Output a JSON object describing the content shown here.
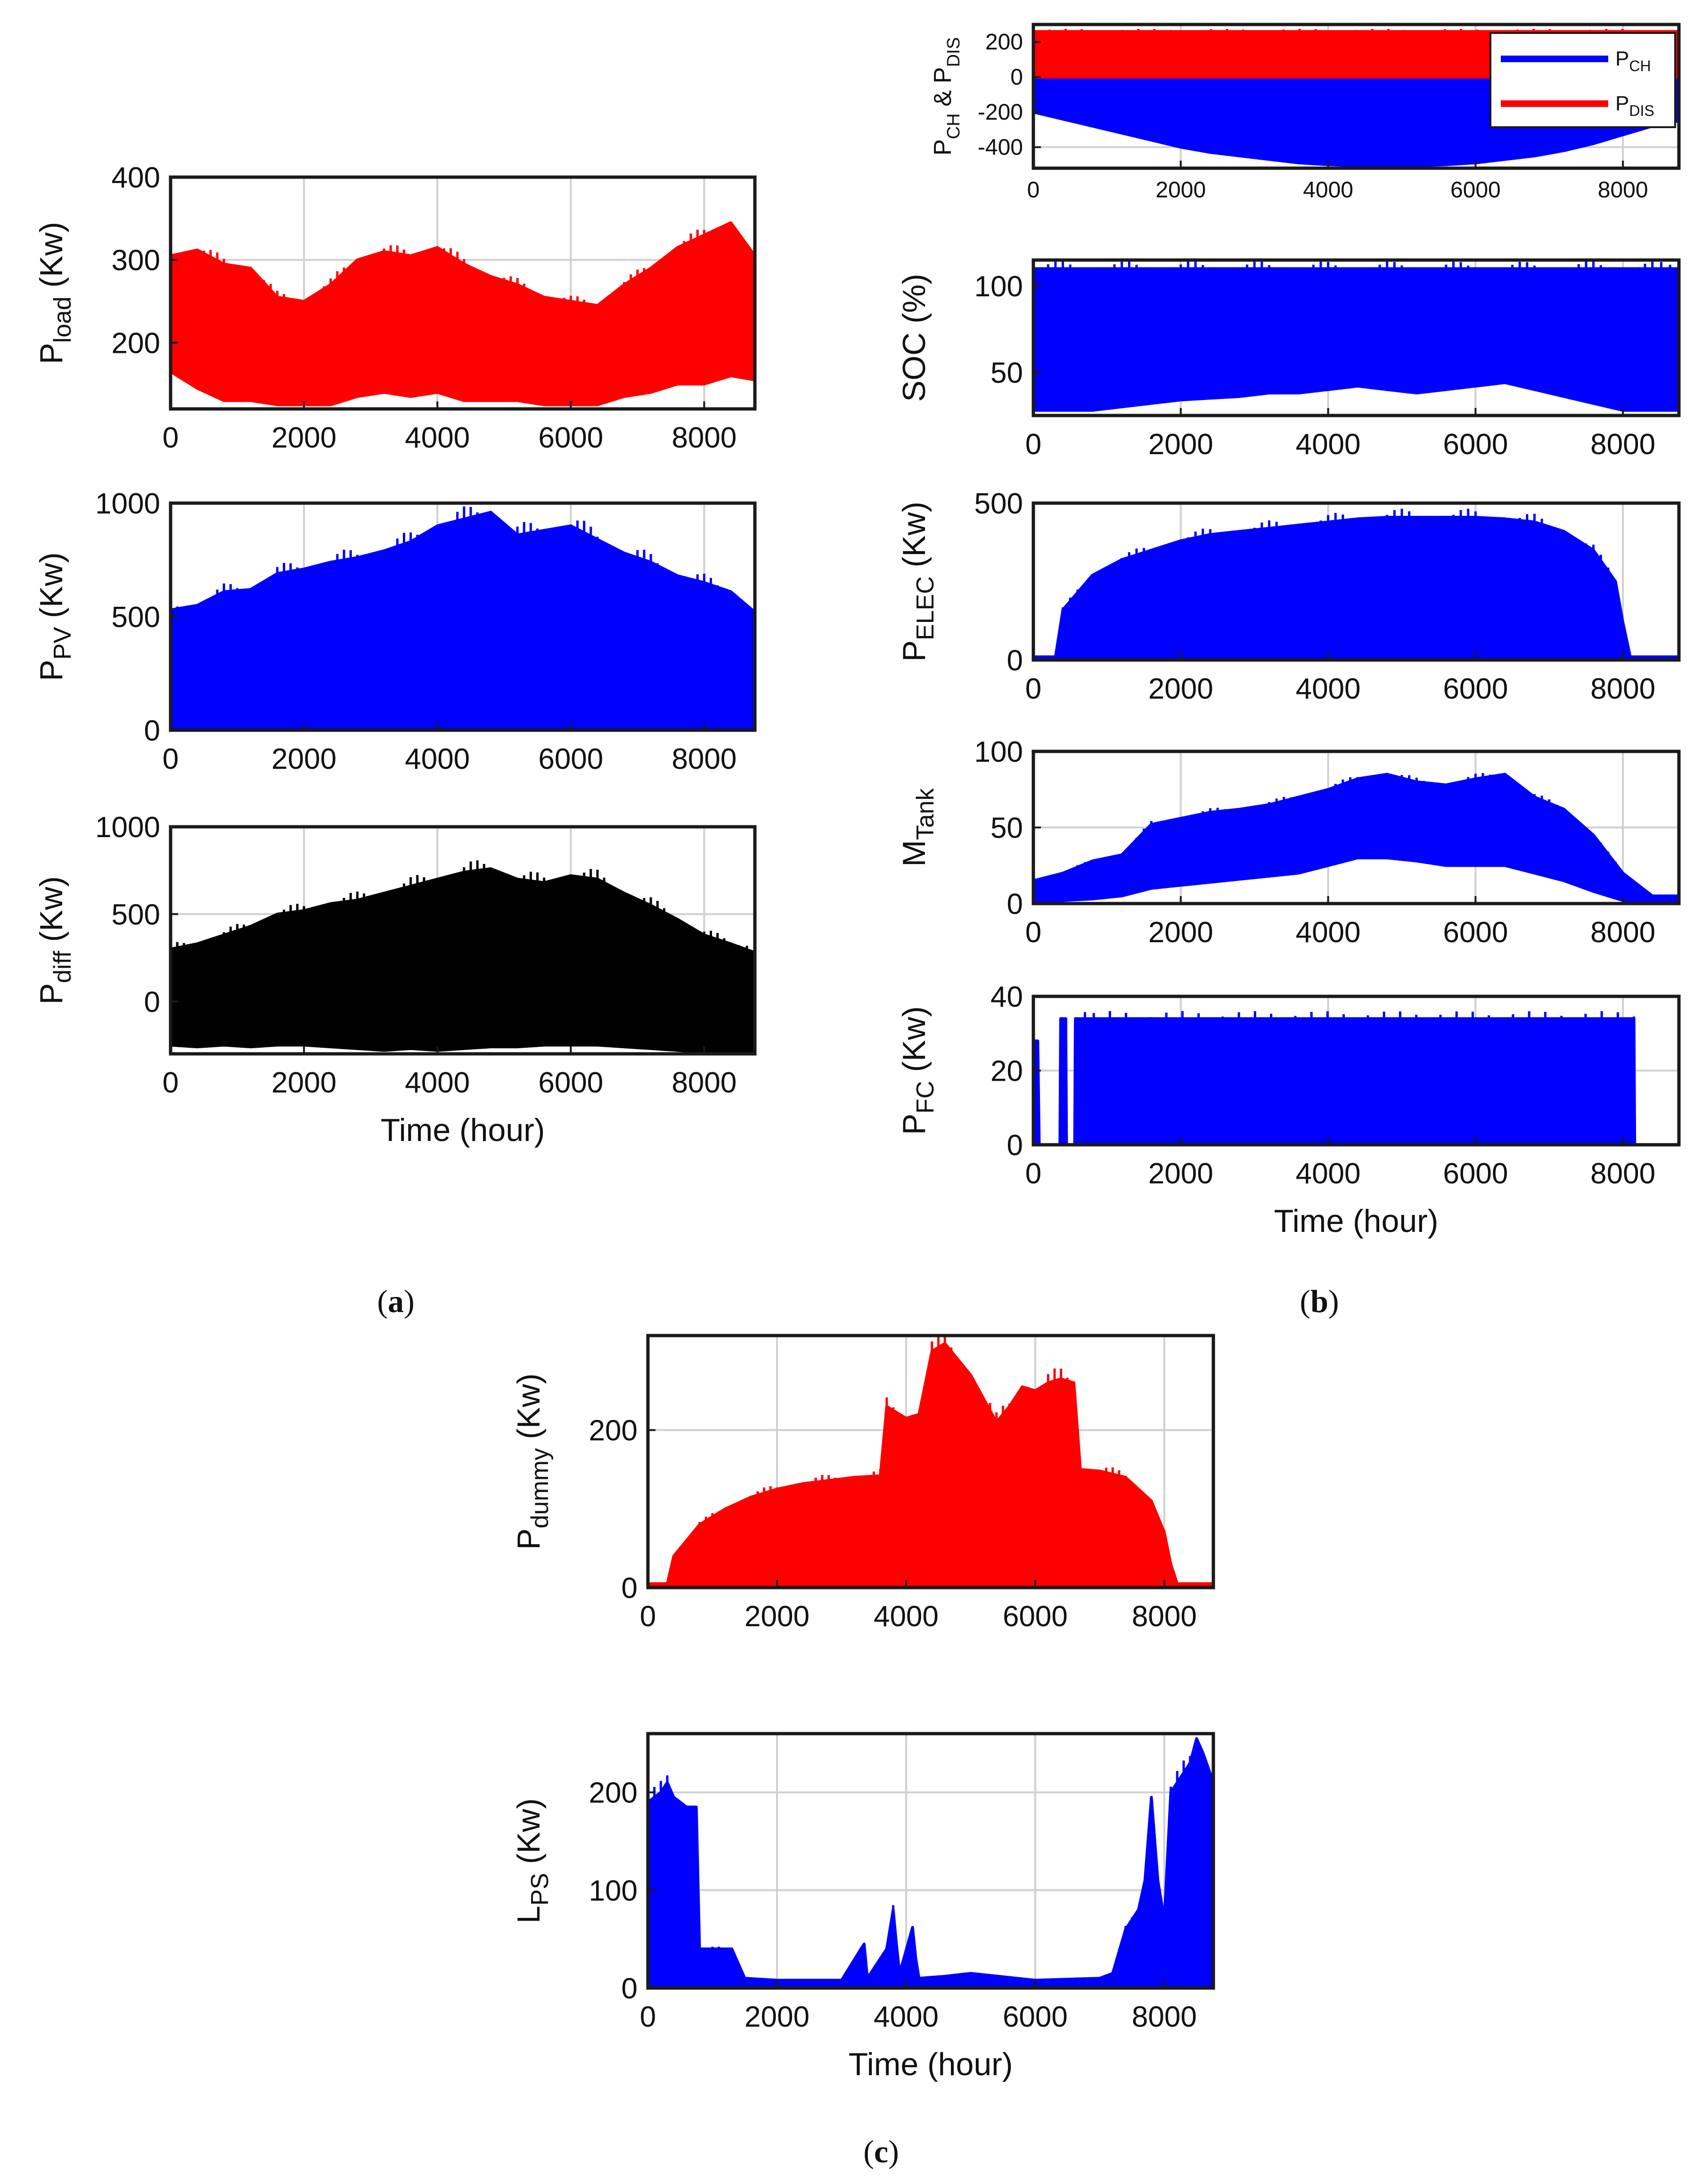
{
  "captions": {
    "a": "a",
    "b": "b",
    "c": "c"
  },
  "chart_data": [
    {
      "id": "a1",
      "type": "area",
      "color": "#ff0000",
      "ylabel": {
        "main": "P",
        "sub": "load",
        "unit": " (Kw)"
      },
      "xlim": [
        0,
        8760
      ],
      "ylim": [
        120,
        400
      ],
      "xticks": [
        0,
        2000,
        4000,
        6000,
        8000
      ],
      "yticks": [
        200,
        300,
        400
      ],
      "series": [
        {
          "name": "P_load",
          "x": [
            0,
            400,
            800,
            1200,
            1600,
            2000,
            2400,
            2800,
            3200,
            3600,
            4000,
            4400,
            4800,
            5200,
            5600,
            6000,
            6400,
            6800,
            7200,
            7600,
            8000,
            8400,
            8760
          ],
          "upper": [
            305,
            312,
            295,
            290,
            255,
            250,
            270,
            300,
            310,
            305,
            315,
            295,
            280,
            270,
            255,
            250,
            245,
            270,
            290,
            315,
            330,
            345,
            305
          ],
          "lower": [
            165,
            145,
            130,
            130,
            125,
            125,
            125,
            135,
            140,
            135,
            140,
            130,
            130,
            130,
            125,
            125,
            125,
            135,
            140,
            150,
            150,
            160,
            155
          ]
        }
      ]
    },
    {
      "id": "a2",
      "type": "area",
      "color": "#0000ff",
      "ylabel": {
        "main": "P",
        "sub": "PV",
        "unit": " (Kw)"
      },
      "xlim": [
        0,
        8760
      ],
      "ylim": [
        0,
        1000
      ],
      "xticks": [
        0,
        2000,
        4000,
        6000,
        8000
      ],
      "yticks": [
        0,
        500,
        1000
      ],
      "series": [
        {
          "name": "P_PV",
          "x": [
            0,
            400,
            800,
            1200,
            1600,
            2000,
            2400,
            2800,
            3200,
            3600,
            4000,
            4400,
            4800,
            5200,
            5600,
            6000,
            6400,
            6800,
            7200,
            7600,
            8000,
            8400,
            8760
          ],
          "upper": [
            530,
            550,
            610,
            620,
            690,
            710,
            740,
            760,
            790,
            830,
            900,
            930,
            960,
            860,
            880,
            900,
            840,
            780,
            740,
            680,
            650,
            610,
            520
          ],
          "lower": [
            0,
            0,
            0,
            0,
            0,
            0,
            0,
            0,
            0,
            0,
            0,
            0,
            0,
            0,
            0,
            0,
            0,
            0,
            0,
            0,
            0,
            0,
            0
          ]
        }
      ]
    },
    {
      "id": "a3",
      "type": "area",
      "color": "#000000",
      "ylabel": {
        "main": "P",
        "sub": "diff",
        "unit": " (Kw)"
      },
      "xlabel": "Time (hour)",
      "xlim": [
        0,
        8760
      ],
      "ylim": [
        -300,
        1000
      ],
      "xticks": [
        0,
        2000,
        4000,
        6000,
        8000
      ],
      "yticks": [
        0,
        500,
        1000
      ],
      "series": [
        {
          "name": "P_diff",
          "x": [
            0,
            400,
            800,
            1200,
            1600,
            2000,
            2400,
            2800,
            3200,
            3600,
            4000,
            4400,
            4800,
            5200,
            5600,
            6000,
            6400,
            6800,
            7200,
            7600,
            8000,
            8400,
            8760
          ],
          "upper": [
            300,
            330,
            380,
            430,
            500,
            520,
            560,
            580,
            620,
            660,
            700,
            740,
            760,
            700,
            680,
            720,
            700,
            620,
            550,
            470,
            380,
            330,
            280
          ],
          "lower": [
            -250,
            -260,
            -250,
            -260,
            -250,
            -250,
            -260,
            -270,
            -280,
            -270,
            -280,
            -270,
            -260,
            -260,
            -250,
            -250,
            -250,
            -260,
            -270,
            -280,
            -290,
            -300,
            -300
          ]
        }
      ]
    },
    {
      "id": "b1",
      "type": "area",
      "color": "#0000ff",
      "small": true,
      "ylabel": {
        "main": "P",
        "sub": "CH",
        "main2": " & P",
        "sub2": "DIS",
        "unit": ""
      },
      "xlim": [
        0,
        8760
      ],
      "ylim": [
        -520,
        300
      ],
      "xticks": [
        0,
        2000,
        4000,
        6000,
        8000
      ],
      "yticks": [
        -400,
        -200,
        0,
        200
      ],
      "legend": [
        {
          "label": "P",
          "sub": "CH",
          "color": "#0000ff"
        },
        {
          "label": "P",
          "sub": "DIS",
          "color": "#ff0000"
        }
      ],
      "series": [
        {
          "name": "P_CH",
          "color": "#0000ff",
          "x": [
            0,
            400,
            800,
            1200,
            1600,
            2000,
            2400,
            2800,
            3200,
            3600,
            4000,
            4400,
            4800,
            5200,
            5600,
            6000,
            6400,
            6800,
            7200,
            7600,
            8000,
            8400,
            8760
          ],
          "upper": [
            0,
            0,
            0,
            0,
            0,
            0,
            0,
            0,
            0,
            0,
            0,
            0,
            0,
            0,
            0,
            0,
            0,
            0,
            0,
            0,
            0,
            0,
            0
          ],
          "lower": [
            -200,
            -240,
            -280,
            -320,
            -360,
            -400,
            -430,
            -450,
            -470,
            -490,
            -500,
            -505,
            -510,
            -505,
            -500,
            -490,
            -470,
            -450,
            -420,
            -380,
            -330,
            -280,
            -250
          ]
        },
        {
          "name": "P_DIS",
          "color": "#ff0000",
          "x": [
            0,
            8760
          ],
          "upper": [
            260,
            260
          ],
          "lower": [
            0,
            0
          ]
        }
      ]
    },
    {
      "id": "b2",
      "type": "area",
      "color": "#0000ff",
      "ylabel": {
        "main": "SOC (%)",
        "sub": "",
        "unit": ""
      },
      "xlim": [
        0,
        8760
      ],
      "ylim": [
        25,
        115
      ],
      "xticks": [
        0,
        2000,
        4000,
        6000,
        8000
      ],
      "yticks": [
        50,
        100
      ],
      "series": [
        {
          "name": "SOC",
          "x": [
            0,
            400,
            800,
            1200,
            1600,
            2000,
            2400,
            2800,
            3200,
            3600,
            4000,
            4400,
            4800,
            5200,
            5600,
            6000,
            6400,
            6800,
            7200,
            7600,
            8000,
            8400,
            8760
          ],
          "upper": [
            110,
            110,
            110,
            110,
            110,
            110,
            110,
            110,
            110,
            110,
            110,
            110,
            110,
            110,
            110,
            110,
            110,
            110,
            110,
            110,
            110,
            110,
            110
          ],
          "lower": [
            28,
            28,
            28,
            30,
            32,
            34,
            35,
            36,
            38,
            38,
            40,
            42,
            40,
            38,
            40,
            42,
            44,
            40,
            36,
            32,
            28,
            28,
            28
          ]
        }
      ]
    },
    {
      "id": "b3",
      "type": "area",
      "color": "#0000ff",
      "ylabel": {
        "main": "P",
        "sub": "ELEC",
        "unit": " (Kw)"
      },
      "xlim": [
        0,
        8760
      ],
      "ylim": [
        0,
        500
      ],
      "xticks": [
        0,
        2000,
        4000,
        6000,
        8000
      ],
      "yticks": [
        0,
        500
      ],
      "series": [
        {
          "name": "P_ELEC",
          "x": [
            0,
            300,
            400,
            800,
            1200,
            1600,
            2000,
            2400,
            2800,
            3200,
            3600,
            4000,
            4400,
            4800,
            5200,
            5600,
            6000,
            6400,
            6800,
            7200,
            7600,
            7900,
            8000,
            8100,
            8760
          ],
          "upper": [
            10,
            10,
            160,
            270,
            320,
            350,
            380,
            400,
            410,
            420,
            430,
            440,
            450,
            455,
            455,
            455,
            455,
            450,
            440,
            410,
            350,
            250,
            120,
            10,
            10
          ],
          "lower": [
            0,
            0,
            0,
            0,
            0,
            0,
            0,
            0,
            0,
            0,
            0,
            0,
            0,
            0,
            0,
            0,
            0,
            0,
            0,
            0,
            0,
            0,
            0,
            0,
            0
          ]
        }
      ]
    },
    {
      "id": "b4",
      "type": "area",
      "color": "#0000ff",
      "ylabel": {
        "main": "M",
        "sub": "Tank",
        "unit": ""
      },
      "xlim": [
        0,
        8760
      ],
      "ylim": [
        0,
        100
      ],
      "xticks": [
        0,
        2000,
        4000,
        6000,
        8000
      ],
      "yticks": [
        0,
        50,
        100
      ],
      "series": [
        {
          "name": "M_Tank",
          "x": [
            0,
            400,
            800,
            1200,
            1600,
            2000,
            2400,
            2800,
            3200,
            3600,
            4000,
            4400,
            4800,
            5200,
            5600,
            6000,
            6400,
            6800,
            7200,
            7600,
            8000,
            8400,
            8760
          ],
          "upper": [
            15,
            20,
            28,
            32,
            52,
            56,
            60,
            62,
            65,
            70,
            75,
            82,
            85,
            80,
            78,
            82,
            85,
            70,
            62,
            45,
            20,
            5,
            5
          ],
          "lower": [
            0,
            2,
            3,
            5,
            10,
            12,
            14,
            16,
            18,
            20,
            25,
            30,
            30,
            28,
            25,
            25,
            25,
            20,
            15,
            8,
            2,
            0,
            0
          ]
        }
      ]
    },
    {
      "id": "b5",
      "type": "area",
      "color": "#0000ff",
      "ylabel": {
        "main": "P",
        "sub": "FC",
        "unit": " (Kw)"
      },
      "xlabel": "Time (hour)",
      "xlim": [
        0,
        8760
      ],
      "ylim": [
        0,
        40
      ],
      "xticks": [
        0,
        2000,
        4000,
        6000,
        8000
      ],
      "yticks": [
        0,
        20,
        40
      ],
      "series": [
        {
          "name": "P_FC",
          "x": [
            0,
            60,
            80,
            360,
            370,
            440,
            450,
            560,
            570,
            700,
            710,
            8150,
            8160,
            8760
          ],
          "upper": [
            28,
            28,
            0,
            0,
            34,
            34,
            0,
            0,
            34,
            34,
            34,
            34,
            0,
            0
          ],
          "lower": [
            0,
            0,
            0,
            0,
            0,
            0,
            0,
            0,
            0,
            0,
            0,
            0,
            0,
            0
          ]
        }
      ]
    },
    {
      "id": "c1",
      "type": "area",
      "color": "#ff0000",
      "ylabel": {
        "main": "P",
        "sub": "dummy",
        "unit": " (Kw)"
      },
      "xlim": [
        0,
        8760
      ],
      "ylim": [
        0,
        320
      ],
      "xticks": [
        0,
        2000,
        4000,
        6000,
        8000
      ],
      "yticks": [
        0,
        200
      ],
      "series": [
        {
          "name": "P_dummy",
          "x": [
            0,
            300,
            400,
            800,
            1200,
            1600,
            2000,
            2400,
            2800,
            3200,
            3600,
            3700,
            4000,
            4200,
            4400,
            4600,
            4800,
            5000,
            5200,
            5400,
            5600,
            5800,
            6000,
            6200,
            6400,
            6600,
            6700,
            7000,
            7400,
            7800,
            8000,
            8100,
            8200,
            8760
          ],
          "upper": [
            5,
            5,
            40,
            80,
            100,
            115,
            125,
            132,
            136,
            140,
            142,
            230,
            215,
            220,
            300,
            310,
            290,
            270,
            240,
            210,
            230,
            255,
            250,
            260,
            265,
            260,
            150,
            148,
            140,
            110,
            70,
            30,
            5,
            5
          ],
          "lower": [
            0,
            0,
            0,
            0,
            0,
            0,
            0,
            0,
            0,
            0,
            0,
            0,
            0,
            0,
            0,
            0,
            0,
            0,
            0,
            0,
            0,
            0,
            0,
            0,
            0,
            0,
            0,
            0,
            0,
            0,
            0,
            0,
            0,
            0
          ]
        }
      ]
    },
    {
      "id": "c2",
      "type": "area",
      "color": "#0000ff",
      "ylabel": {
        "main": "L",
        "sub": "PS",
        "unit": " (Kw)"
      },
      "xlabel": "Time (hour)",
      "xlim": [
        0,
        8760
      ],
      "ylim": [
        0,
        260
      ],
      "xticks": [
        0,
        2000,
        4000,
        6000,
        8000
      ],
      "yticks": [
        0,
        100,
        200
      ],
      "series": [
        {
          "name": "L_PS",
          "x": [
            0,
            200,
            300,
            400,
            600,
            750,
            800,
            900,
            1300,
            1500,
            2000,
            2500,
            3000,
            3300,
            3350,
            3400,
            3700,
            3800,
            3850,
            3900,
            4100,
            4150,
            4200,
            4600,
            5000,
            6000,
            7000,
            7200,
            7400,
            7600,
            7700,
            7800,
            7900,
            8000,
            8100,
            8300,
            8400,
            8500,
            8600,
            8760
          ],
          "upper": [
            190,
            200,
            210,
            195,
            185,
            185,
            40,
            40,
            40,
            10,
            8,
            8,
            8,
            40,
            45,
            10,
            40,
            80,
            45,
            15,
            62,
            30,
            10,
            12,
            15,
            8,
            10,
            15,
            60,
            80,
            110,
            195,
            110,
            70,
            200,
            220,
            230,
            255,
            240,
            210
          ],
          "lower": [
            0,
            0,
            0,
            0,
            0,
            0,
            0,
            0,
            0,
            0,
            0,
            0,
            0,
            0,
            0,
            0,
            0,
            0,
            0,
            0,
            0,
            0,
            0,
            0,
            0,
            0,
            0,
            0,
            0,
            0,
            0,
            0,
            0,
            0,
            0,
            0,
            0,
            0,
            0,
            0
          ]
        }
      ]
    }
  ]
}
